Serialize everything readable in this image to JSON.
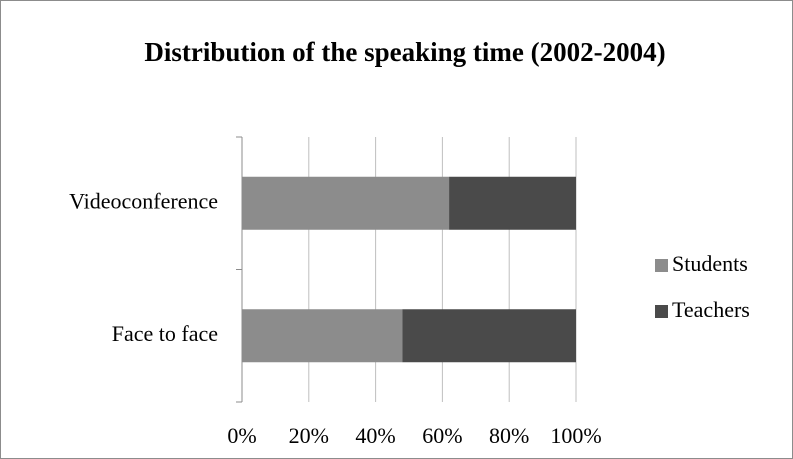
{
  "chart_data": {
    "type": "stacked_bar_horizontal",
    "title": "Distribution of the speaking time (2002-2004)",
    "categories": [
      "Face to face",
      "Videoconference"
    ],
    "series": [
      {
        "name": "Students",
        "color": "#8c8c8c",
        "values": [
          48,
          62
        ]
      },
      {
        "name": "Teachers",
        "color": "#4a4a4a",
        "values": [
          52,
          38
        ]
      }
    ],
    "xlim": [
      0,
      100
    ],
    "xticks": [
      {
        "value": 0,
        "label": "0%"
      },
      {
        "value": 20,
        "label": "20%"
      },
      {
        "value": 40,
        "label": "40%"
      },
      {
        "value": 60,
        "label": "60%"
      },
      {
        "value": 80,
        "label": "80%"
      },
      {
        "value": 100,
        "label": "100%"
      }
    ],
    "grid": true,
    "legend": "right"
  }
}
